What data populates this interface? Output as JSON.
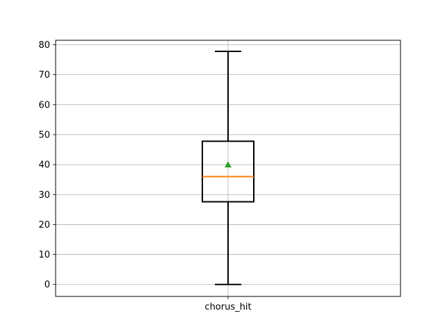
{
  "chart_data": {
    "type": "box",
    "title": "",
    "xlabel": "",
    "ylabel": "",
    "categories": [
      "chorus_hit"
    ],
    "ylim": [
      -4,
      81.5
    ],
    "yticks": [
      0,
      10,
      20,
      30,
      40,
      50,
      60,
      70,
      80
    ],
    "grid": true,
    "boxes": [
      {
        "name": "chorus_hit",
        "whisker_low": 0,
        "q1": 27.6,
        "median": 36,
        "q3": 47.8,
        "whisker_high": 77.8,
        "mean": 40
      }
    ],
    "colors": {
      "box": "#000000",
      "median": "#ff7f0e",
      "mean": "#2ca02c",
      "grid": "#b0b0b0"
    }
  }
}
